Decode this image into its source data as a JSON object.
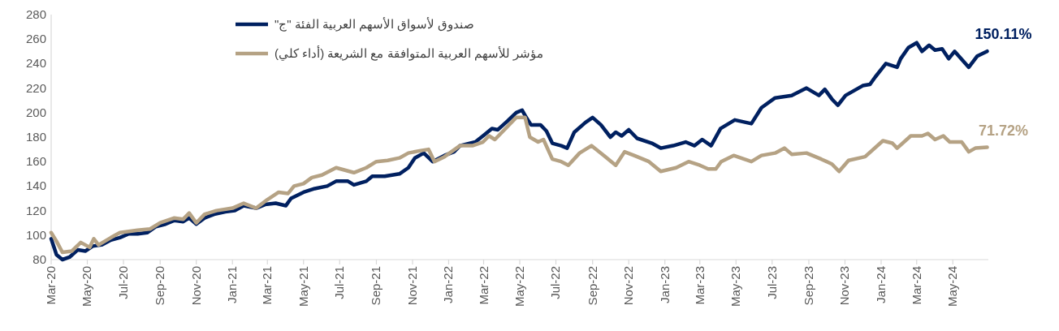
{
  "chart_data": {
    "type": "line",
    "xlim": [
      "2020-03-01",
      "2024-06-30"
    ],
    "ylim": [
      80,
      280
    ],
    "yticks": [
      80,
      100,
      120,
      140,
      160,
      180,
      200,
      220,
      240,
      260,
      280
    ],
    "xticks": [
      {
        "value": "2020-03",
        "label": "Mar-20"
      },
      {
        "value": "2020-05",
        "label": "May-20"
      },
      {
        "value": "2020-07",
        "label": "Jul-20"
      },
      {
        "value": "2020-09",
        "label": "Sep-20"
      },
      {
        "value": "2020-11",
        "label": "Nov-20"
      },
      {
        "value": "2021-01",
        "label": "Jan-21"
      },
      {
        "value": "2021-03",
        "label": "Mar-21"
      },
      {
        "value": "2021-05",
        "label": "May-21"
      },
      {
        "value": "2021-07",
        "label": "Jul-21"
      },
      {
        "value": "2021-09",
        "label": "Sep-21"
      },
      {
        "value": "2021-11",
        "label": "Nov-21"
      },
      {
        "value": "2022-01",
        "label": "Jan-22"
      },
      {
        "value": "2022-03",
        "label": "Mar-22"
      },
      {
        "value": "2022-05",
        "label": "May-22"
      },
      {
        "value": "2022-07",
        "label": "Jul-22"
      },
      {
        "value": "2022-09",
        "label": "Sep-22"
      },
      {
        "value": "2022-11",
        "label": "Nov-22"
      },
      {
        "value": "2023-01",
        "label": "Jan-23"
      },
      {
        "value": "2023-03",
        "label": "Mar-23"
      },
      {
        "value": "2023-05",
        "label": "May-23"
      },
      {
        "value": "2023-07",
        "label": "Jul-23"
      },
      {
        "value": "2023-09",
        "label": "Sep-23"
      },
      {
        "value": "2023-11",
        "label": "Nov-23"
      },
      {
        "value": "2024-01",
        "label": "Jan-24"
      },
      {
        "value": "2024-03",
        "label": "Mar-24"
      },
      {
        "value": "2024-05",
        "label": "May-24"
      }
    ],
    "grid": false,
    "legend": "top",
    "marker": "none",
    "line_style": "solid",
    "annotations": [
      {
        "text": "150.11%",
        "x": "2024-06-28",
        "y": 250.1
      },
      {
        "text": "71.72%",
        "x": "2024-06-28",
        "y": 171.7
      }
    ],
    "series": [
      {
        "name": "صندوق لأسواق الأسهم العربية الفئة \"ج\"",
        "color": "#002060",
        "x": [
          "2020-03-01",
          "2020-03-10",
          "2020-03-20",
          "2020-04-01",
          "2020-04-15",
          "2020-04-28",
          "2020-05-10",
          "2020-05-25",
          "2020-06-10",
          "2020-06-25",
          "2020-07-10",
          "2020-07-25",
          "2020-08-10",
          "2020-08-25",
          "2020-09-10",
          "2020-09-25",
          "2020-10-10",
          "2020-10-20",
          "2020-11-01",
          "2020-11-15",
          "2020-12-01",
          "2020-12-20",
          "2021-01-05",
          "2021-01-20",
          "2021-02-10",
          "2021-02-25",
          "2021-03-15",
          "2021-04-01",
          "2021-04-10",
          "2021-05-01",
          "2021-05-20",
          "2021-06-10",
          "2021-06-25",
          "2021-07-15",
          "2021-07-25",
          "2021-08-15",
          "2021-08-25",
          "2021-09-15",
          "2021-10-10",
          "2021-10-25",
          "2021-11-05",
          "2021-11-20",
          "2021-12-05",
          "2021-12-25",
          "2022-01-10",
          "2022-01-20",
          "2022-02-15",
          "2022-02-28",
          "2022-03-15",
          "2022-03-25",
          "2022-04-10",
          "2022-04-25",
          "2022-05-05",
          "2022-05-12",
          "2022-05-20",
          "2022-06-05",
          "2022-06-15",
          "2022-06-25",
          "2022-07-10",
          "2022-07-20",
          "2022-08-01",
          "2022-08-20",
          "2022-09-01",
          "2022-09-15",
          "2022-10-01",
          "2022-10-10",
          "2022-10-20",
          "2022-11-01",
          "2022-11-15",
          "2022-12-10",
          "2022-12-25",
          "2023-01-15",
          "2023-02-05",
          "2023-02-20",
          "2023-03-05",
          "2023-03-20",
          "2023-04-05",
          "2023-04-29",
          "2023-05-27",
          "2023-06-13",
          "2023-07-06",
          "2023-08-03",
          "2023-08-28",
          "2023-09-18",
          "2023-09-28",
          "2023-10-10",
          "2023-10-20",
          "2023-11-02",
          "2023-12-01",
          "2023-12-13",
          "2023-12-22",
          "2024-01-09",
          "2024-01-28",
          "2024-02-03",
          "2024-02-16",
          "2024-03-01",
          "2024-03-10",
          "2024-03-22",
          "2024-04-01",
          "2024-04-13",
          "2024-04-24",
          "2024-05-04",
          "2024-05-28",
          "2024-06-11",
          "2024-06-28"
        ],
        "values": [
          97,
          84,
          80,
          82,
          88,
          87,
          91,
          92,
          96,
          98,
          101,
          101,
          102,
          107,
          109,
          112,
          111,
          114,
          109,
          114,
          117,
          119,
          120,
          124,
          122,
          125,
          126,
          124,
          130,
          135,
          138,
          140,
          144,
          144,
          141,
          144,
          148,
          148,
          150,
          155,
          163,
          167,
          160,
          165,
          168,
          173,
          176,
          181,
          187,
          186,
          193,
          200,
          202,
          196,
          190,
          190,
          185,
          175,
          173,
          171,
          184,
          192,
          196,
          190,
          180,
          184,
          181,
          186,
          179,
          175,
          171,
          173,
          176,
          173,
          178,
          173,
          187,
          194,
          191,
          204,
          212,
          214,
          220,
          214,
          219,
          211,
          206,
          214,
          222,
          223,
          229,
          240,
          237,
          244,
          253,
          257,
          250,
          255,
          251,
          252,
          244,
          250,
          237,
          246,
          250.1
        ]
      },
      {
        "name": "مؤشر للأسهم العربية المتوافقة مع الشريعة (أداء كلي)",
        "color": "#b5a284",
        "x": [
          "2020-03-01",
          "2020-03-10",
          "2020-03-20",
          "2020-04-05",
          "2020-04-20",
          "2020-05-05",
          "2020-05-12",
          "2020-05-20",
          "2020-06-10",
          "2020-06-25",
          "2020-07-10",
          "2020-07-25",
          "2020-08-15",
          "2020-09-01",
          "2020-09-25",
          "2020-10-10",
          "2020-10-20",
          "2020-11-01",
          "2020-11-15",
          "2020-12-05",
          "2021-01-01",
          "2021-01-20",
          "2021-02-10",
          "2021-03-01",
          "2021-03-20",
          "2021-04-05",
          "2021-04-15",
          "2021-05-01",
          "2021-05-15",
          "2021-06-01",
          "2021-06-25",
          "2021-07-10",
          "2021-07-25",
          "2021-08-15",
          "2021-09-01",
          "2021-09-20",
          "2021-10-10",
          "2021-10-25",
          "2021-11-15",
          "2021-11-28",
          "2021-12-08",
          "2021-12-25",
          "2022-01-20",
          "2022-02-10",
          "2022-02-28",
          "2022-03-10",
          "2022-03-20",
          "2022-04-05",
          "2022-04-25",
          "2022-05-10",
          "2022-05-18",
          "2022-06-01",
          "2022-06-10",
          "2022-06-25",
          "2022-07-10",
          "2022-07-22",
          "2022-08-10",
          "2022-08-30",
          "2022-09-20",
          "2022-10-10",
          "2022-10-25",
          "2022-11-10",
          "2022-12-05",
          "2022-12-25",
          "2023-01-20",
          "2023-02-10",
          "2023-03-01",
          "2023-03-15",
          "2023-03-28",
          "2023-04-06",
          "2023-04-27",
          "2023-05-27",
          "2023-06-13",
          "2023-07-06",
          "2023-07-22",
          "2023-08-03",
          "2023-08-28",
          "2023-09-22",
          "2023-10-10",
          "2023-10-22",
          "2023-11-07",
          "2023-12-05",
          "2024-01-04",
          "2024-01-20",
          "2024-01-28",
          "2024-02-20",
          "2024-03-10",
          "2024-03-20",
          "2024-04-01",
          "2024-04-15",
          "2024-04-26",
          "2024-05-16",
          "2024-05-28",
          "2024-06-08",
          "2024-06-28"
        ],
        "values": [
          102,
          95,
          86,
          87,
          94,
          90,
          97,
          92,
          98,
          102,
          103,
          104,
          105,
          110,
          114,
          113,
          118,
          110,
          117,
          120,
          122,
          126,
          122,
          129,
          135,
          134,
          140,
          142,
          147,
          149,
          155,
          153,
          151,
          155,
          160,
          161,
          163,
          167,
          169,
          170,
          160,
          164,
          173,
          173,
          176,
          181,
          178,
          186,
          196,
          196,
          180,
          176,
          178,
          162,
          160,
          157,
          167,
          173,
          165,
          157,
          168,
          165,
          160,
          152,
          155,
          160,
          157,
          154,
          154,
          160,
          165,
          160,
          165,
          167,
          171,
          166,
          167,
          162,
          158,
          152,
          161,
          164,
          177,
          175,
          171,
          181,
          181,
          183,
          178,
          181,
          176,
          176,
          168,
          171,
          171.7
        ]
      }
    ]
  }
}
